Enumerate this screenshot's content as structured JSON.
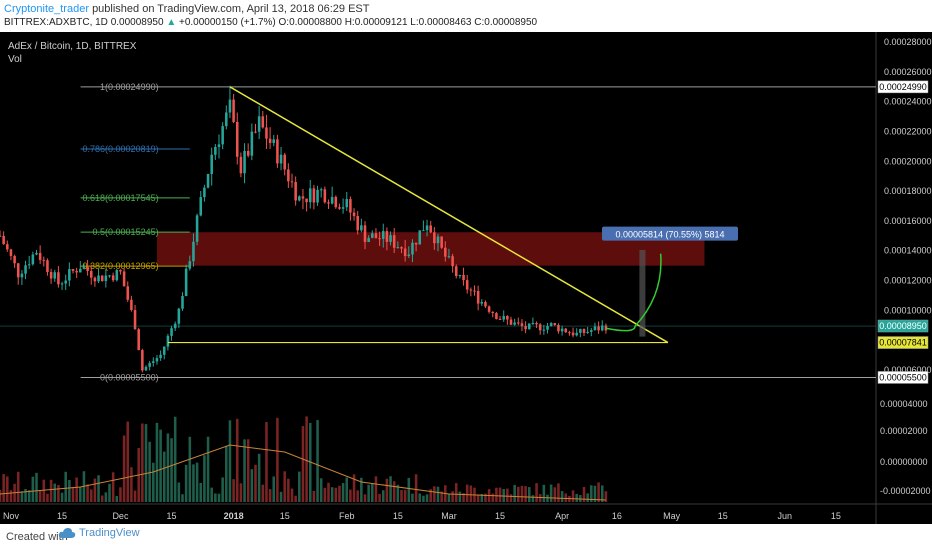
{
  "header": {
    "author": "Cryptonite_trader",
    "published_text": "published on TradingView.com, April 13, 2018 06:29 EST",
    "symbol": "BITTREX:ADXBTC, 1D",
    "last": "0.00008950",
    "change_arrow": "▲",
    "change": "+0.00000150 (+1.7%)",
    "ohlc": "O:0.00008800 H:0.00009121 L:0.00008463 C:0.00008950"
  },
  "legend": {
    "title": "AdEx / Bitcoin, 1D, BITTREX",
    "vol": "Vol"
  },
  "footer": {
    "created_with": "Created with",
    "brand": "TradingView"
  },
  "colors": {
    "up": "#26a69a",
    "down": "#ef5350",
    "up_vol": "#1f5e4b",
    "down_vol": "#7a2424",
    "zone": "#6e0f0f",
    "trendline": "#e6e639",
    "projection": "#33cc33",
    "fib_1": "#9e9e9e",
    "fib_786": "#2f6fb0",
    "fib_618": "#4caf50",
    "fib_05": "#4caf50",
    "fib_382": "#c0a000",
    "fib_0": "#9e9e9e",
    "volume_ma": "#c8843a"
  },
  "chart_data": {
    "type": "candlestick",
    "y_axis": {
      "ticks": [
        "0.00028000",
        "0.00026000",
        "0.00024000",
        "0.00022000",
        "0.00020000",
        "0.00018000",
        "0.00016000",
        "0.00014000",
        "0.00012000",
        "0.00010000",
        "0.00006000"
      ],
      "range": [
        4e-05,
        0.00028
      ]
    },
    "volume_axis": {
      "ticks": [
        "0.00004000",
        "0.00002000",
        "0.00000000",
        "-0.00002000"
      ]
    },
    "x_axis": {
      "ticks": [
        {
          "date": "2017-11-01",
          "label": "Nov"
        },
        {
          "date": "2017-11-15",
          "label": "15"
        },
        {
          "date": "2017-12-01",
          "label": "Dec"
        },
        {
          "date": "2017-12-15",
          "label": "15"
        },
        {
          "date": "2018-01-01",
          "label": "2018"
        },
        {
          "date": "2018-01-15",
          "label": "15"
        },
        {
          "date": "2018-02-01",
          "label": "Feb"
        },
        {
          "date": "2018-02-15",
          "label": "15"
        },
        {
          "date": "2018-03-01",
          "label": "Mar"
        },
        {
          "date": "2018-03-15",
          "label": "15"
        },
        {
          "date": "2018-04-01",
          "label": "Apr"
        },
        {
          "date": "2018-04-16",
          "label": "16"
        },
        {
          "date": "2018-05-01",
          "label": "May"
        },
        {
          "date": "2018-05-15",
          "label": "15"
        },
        {
          "date": "2018-06-01",
          "label": "Jun"
        },
        {
          "date": "2018-06-15",
          "label": "15"
        }
      ],
      "range": [
        "2017-10-29",
        "2018-06-26"
      ]
    },
    "price_anchors": [
      {
        "date": "2017-10-29",
        "price": 0.00015
      },
      {
        "date": "2017-11-03",
        "price": 0.000125
      },
      {
        "date": "2017-11-08",
        "price": 0.00014
      },
      {
        "date": "2017-11-14",
        "price": 0.000118
      },
      {
        "date": "2017-11-20",
        "price": 0.00013
      },
      {
        "date": "2017-11-25",
        "price": 0.000122
      },
      {
        "date": "2017-12-01",
        "price": 0.000125
      },
      {
        "date": "2017-12-05",
        "price": 9e-05
      },
      {
        "date": "2017-12-07",
        "price": 6e-05
      },
      {
        "date": "2017-12-12",
        "price": 7e-05
      },
      {
        "date": "2017-12-17",
        "price": 0.0001
      },
      {
        "date": "2017-12-22",
        "price": 0.00016
      },
      {
        "date": "2017-12-26",
        "price": 0.000205
      },
      {
        "date": "2017-12-31",
        "price": 0.000235
      },
      {
        "date": "2018-01-03",
        "price": 0.000195
      },
      {
        "date": "2018-01-08",
        "price": 0.000225
      },
      {
        "date": "2018-01-13",
        "price": 0.000205
      },
      {
        "date": "2018-01-19",
        "price": 0.000175
      },
      {
        "date": "2018-01-25",
        "price": 0.00018
      },
      {
        "date": "2018-02-01",
        "price": 0.00017
      },
      {
        "date": "2018-02-06",
        "price": 0.00015
      },
      {
        "date": "2018-02-12",
        "price": 0.000148
      },
      {
        "date": "2018-02-18",
        "price": 0.00014
      },
      {
        "date": "2018-02-23",
        "price": 0.00016
      },
      {
        "date": "2018-02-27",
        "price": 0.00014
      },
      {
        "date": "2018-03-04",
        "price": 0.00012
      },
      {
        "date": "2018-03-09",
        "price": 0.000108
      },
      {
        "date": "2018-03-15",
        "price": 9.5e-05
      },
      {
        "date": "2018-03-22",
        "price": 8.8e-05
      },
      {
        "date": "2018-03-29",
        "price": 9e-05
      },
      {
        "date": "2018-04-05",
        "price": 8.4e-05
      },
      {
        "date": "2018-04-11",
        "price": 8.8e-05
      },
      {
        "date": "2018-04-13",
        "price": 8.95e-05
      }
    ],
    "current_price": {
      "label": "0.00008950",
      "value": 8.95e-05
    },
    "support_line": {
      "label": "0.00007841",
      "value": 7.841e-05,
      "from": "2017-12-14",
      "to": "2018-04-30"
    },
    "trendline": {
      "from": {
        "date": "2017-12-31",
        "price": 0.0002499
      },
      "to": {
        "date": "2018-04-30",
        "price": 7.84e-05
      }
    },
    "resistance_zone": {
      "from": "2017-12-11",
      "to": "2018-05-10",
      "low": 0.00013,
      "high": 0.0001524
    },
    "fib_levels": [
      {
        "ratio": "1",
        "label": "1(0.00024990)",
        "value": 0.0002499,
        "color_key": "fib_1",
        "axis_label": "0.00024990"
      },
      {
        "ratio": "0.786",
        "label": "0.786(0.00020819)",
        "value": 0.00020819,
        "color_key": "fib_786"
      },
      {
        "ratio": "0.618",
        "label": "0.618(0.00017545)",
        "value": 0.00017545,
        "color_key": "fib_618"
      },
      {
        "ratio": "0.5",
        "label": "0.5(0.00015245)",
        "value": 0.00015245,
        "color_key": "fib_05"
      },
      {
        "ratio": "0.382",
        "label": "0.382(0.00012965)",
        "value": 0.00012965,
        "color_key": "fib_382"
      },
      {
        "ratio": "0",
        "label": "0(0.00005500)",
        "value": 5.5e-05,
        "color_key": "fib_0",
        "axis_label": "0.00005500"
      }
    ],
    "fib_range": [
      "2017-10-29",
      "2017-12-12"
    ],
    "measure_tool": {
      "label": "0.00005814 (70.55%) 5814",
      "date": "2018-04-23",
      "from_price": 8.24e-05,
      "to_price": 0.0001405
    },
    "projection_path": [
      {
        "date": "2018-04-13",
        "price": 8.8e-05
      },
      {
        "date": "2018-04-21",
        "price": 8.95e-05
      },
      {
        "date": "2018-04-25",
        "price": 0.00011
      },
      {
        "date": "2018-04-28",
        "price": 0.000138
      }
    ],
    "volume_note": "relative volume bars, peaks in December and January, low in March-April"
  }
}
